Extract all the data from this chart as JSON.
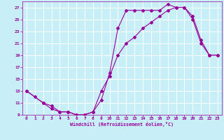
{
  "xlabel": "Windchill (Refroidissement éolien,°C)",
  "bg_color": "#c8eef8",
  "line_color": "#990099",
  "grid_color": "#ffffff",
  "xlim": [
    -0.5,
    23.5
  ],
  "ylim": [
    9,
    28
  ],
  "xticks": [
    0,
    1,
    2,
    3,
    4,
    5,
    6,
    7,
    8,
    9,
    10,
    11,
    12,
    13,
    14,
    15,
    16,
    17,
    18,
    19,
    20,
    21,
    22,
    23
  ],
  "yticks": [
    9,
    11,
    13,
    15,
    17,
    19,
    21,
    23,
    25,
    27
  ],
  "curve1_x": [
    0,
    1,
    2,
    3,
    4,
    5,
    6,
    7,
    8,
    9,
    10,
    11,
    12,
    13,
    14,
    15,
    16,
    17,
    18,
    19,
    20,
    21,
    22,
    23
  ],
  "curve1_y": [
    13,
    12,
    11,
    10.5,
    9.5,
    9.5,
    9,
    9,
    9.5,
    11.5,
    16,
    23.5,
    26.5,
    26.5,
    26.5,
    26.5,
    26.5,
    27.5,
    27,
    27,
    25.5,
    21.5,
    19,
    19
  ],
  "curve2_x": [
    0,
    2,
    3,
    4,
    5,
    6,
    7,
    8,
    9,
    10,
    11,
    12,
    13,
    14,
    15,
    16,
    17,
    18,
    19,
    20,
    21,
    22,
    23
  ],
  "curve2_y": [
    13,
    11,
    10,
    9.5,
    9.5,
    9,
    9,
    9.5,
    13,
    15.5,
    19,
    21,
    22,
    23.5,
    24.5,
    25.5,
    26.5,
    27,
    27,
    25,
    21,
    19,
    19
  ]
}
